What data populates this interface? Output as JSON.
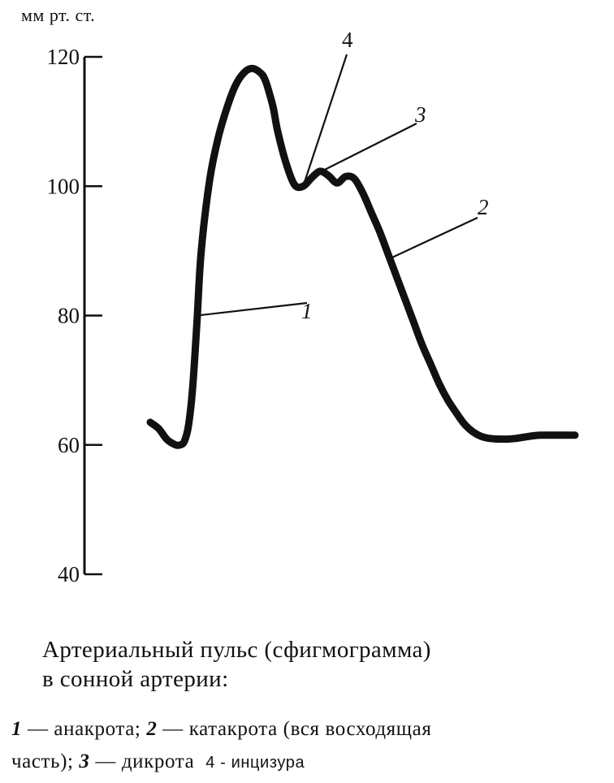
{
  "chart_data": {
    "type": "line",
    "ylabel": "мм рт. ст.",
    "ylim": [
      40,
      120
    ],
    "y_ticks": [
      {
        "value": 120,
        "label": "120"
      },
      {
        "value": 100,
        "label": "100"
      },
      {
        "value": 80,
        "label": "80"
      },
      {
        "value": 60,
        "label": "60"
      },
      {
        "value": 40,
        "label": "40"
      }
    ],
    "series": [
      {
        "x": [
          0,
          2,
          4,
          6,
          7,
          8,
          9,
          10,
          11,
          12,
          14,
          16,
          18,
          20,
          22,
          24,
          26,
          27,
          28,
          29,
          30,
          32,
          34,
          36,
          38,
          40,
          42,
          44,
          46,
          48,
          50,
          52,
          54,
          56,
          58,
          60,
          62,
          64,
          66,
          68,
          70,
          72,
          74,
          76,
          78,
          80,
          82,
          84,
          86,
          88,
          90,
          92,
          94,
          96,
          98,
          100
        ],
        "y": [
          63.5,
          62.5,
          60.8,
          60.0,
          60.0,
          60.5,
          63.0,
          69.0,
          79.0,
          90.0,
          101.0,
          107.5,
          112.0,
          115.5,
          117.5,
          118.2,
          117.5,
          116.5,
          114.5,
          112.0,
          108.5,
          103.5,
          100.2,
          100.0,
          101.3,
          102.3,
          101.6,
          100.5,
          101.5,
          101.2,
          99.0,
          96.0,
          93.0,
          89.5,
          86.0,
          82.5,
          79.0,
          75.5,
          72.5,
          69.5,
          67.0,
          65.0,
          63.2,
          62.0,
          61.3,
          61.0,
          60.9,
          60.9,
          61.0,
          61.2,
          61.4,
          61.5,
          61.5,
          61.5,
          61.5,
          61.5
        ]
      }
    ],
    "annotations": [
      {
        "label": "1",
        "at_x": 11,
        "at_y": 80
      },
      {
        "label": "2",
        "at_x": 57,
        "at_y": 89
      },
      {
        "label": "3",
        "at_x": 40,
        "at_y": 102.2
      },
      {
        "label": "4",
        "at_x": 36,
        "at_y": 100
      }
    ]
  },
  "caption": {
    "line1": "Артериальный пульс (сфигмограмма)",
    "line2": "в сонной артерии:"
  },
  "legend": {
    "item1_num": "1",
    "item1_text": " — анакрота; ",
    "item2_num": "2",
    "item2_text": " — катакрота (вся восходящая",
    "line2_text": "часть); ",
    "item3_num": "3",
    "item3_text": " — дикрота",
    "item4_text": "4 - инцизура"
  }
}
